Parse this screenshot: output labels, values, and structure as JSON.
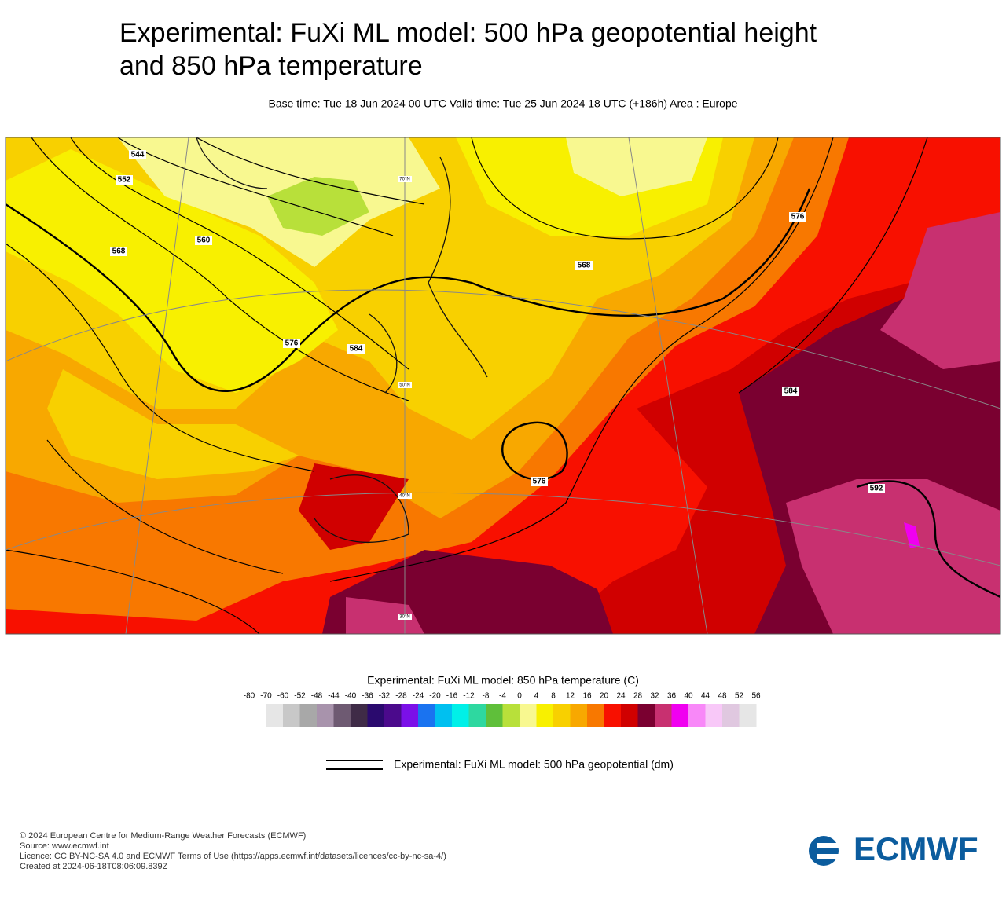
{
  "header": {
    "title_lines": [
      "Experimental: FuXi ML model: 500 hPa geopotential height",
      "and 850 hPa temperature"
    ],
    "subtitle": "Base time: Tue 18 Jun 2024 00 UTC Valid time: Tue 25 Jun 2024 18 UTC (+186h) Area : Europe"
  },
  "map": {
    "contour_labels": [
      "544",
      "552",
      "568",
      "560",
      "576",
      "584",
      "568",
      "576",
      "576",
      "584",
      "592"
    ],
    "latitude_labels": [
      "70°N",
      "50°N",
      "40°N",
      "30°N"
    ]
  },
  "colorbar": {
    "title": "Experimental: FuXi ML model: 850 hPa temperature (C)",
    "ticks": [
      -80,
      -70,
      -60,
      -52,
      -48,
      -44,
      -40,
      -36,
      -32,
      -28,
      -24,
      -20,
      -16,
      -12,
      -8,
      -4,
      0,
      4,
      8,
      12,
      16,
      20,
      24,
      28,
      32,
      36,
      40,
      44,
      48,
      52,
      56
    ],
    "colors": [
      "#e6e6e6",
      "#c8c8c8",
      "#a8a8a8",
      "#a893ac",
      "#6e5a72",
      "#3f2b47",
      "#2a0a6e",
      "#4b0a8c",
      "#7b10e8",
      "#1a73f0",
      "#00c0f0",
      "#00f0e8",
      "#2ed8a0",
      "#5fbf3a",
      "#b8e03a",
      "#f8f890",
      "#f8f000",
      "#f8d000",
      "#f8a800",
      "#f87800",
      "#f81000",
      "#d00000",
      "#7a0030",
      "#c83070",
      "#f000f0",
      "#f888f8",
      "#f8c8f8",
      "#e0c8e0",
      "#e6e6e6"
    ]
  },
  "legend": {
    "label": "Experimental: FuXi ML model: 500 hPa geopotential (dm)"
  },
  "footer": {
    "lines": [
      "© 2024 European Centre for Medium-Range Weather Forecasts (ECMWF)",
      "Source: www.ecmwf.int",
      "Licence: CC BY-NC-SA 4.0 and ECMWF Terms of Use (https://apps.ecmwf.int/datasets/licences/cc-by-nc-sa-4/)",
      "Created at 2024-06-18T08:06:09.839Z"
    ],
    "logo": "ECMWF"
  }
}
